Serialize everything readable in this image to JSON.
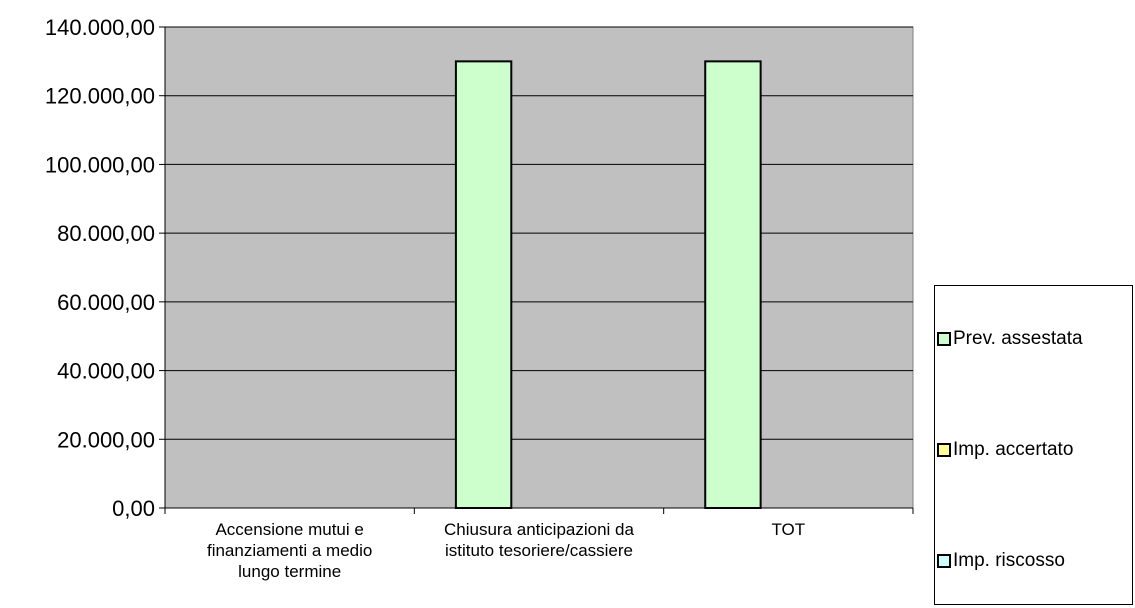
{
  "chart_data": {
    "type": "bar",
    "categories": [
      "Accensione mutui e finanziamenti a medio lungo termine",
      "Chiusura anticipazioni da istituto tesoriere/cassiere",
      "TOT"
    ],
    "category_lines": [
      [
        "Accensione mutui e",
        "finanziamenti a medio",
        "lungo termine"
      ],
      [
        "Chiusura anticipazioni da",
        "istituto tesoriere/cassiere"
      ],
      [
        "TOT"
      ]
    ],
    "series": [
      {
        "name": "Prev. assestata",
        "values": [
          0,
          130000,
          130000
        ],
        "color": "#ccffcc"
      },
      {
        "name": "Imp. accertato",
        "values": [
          0,
          0,
          0
        ],
        "color": "#ffff99"
      },
      {
        "name": "Imp. riscosso",
        "values": [
          0,
          0,
          0
        ],
        "color": "#ccffff"
      }
    ],
    "ylim": [
      0,
      140000
    ],
    "yticks": [
      0,
      20000,
      40000,
      60000,
      80000,
      100000,
      120000,
      140000
    ],
    "ytick_labels": [
      "0,00",
      "20.000,00",
      "40.000,00",
      "60.000,00",
      "80.000,00",
      "100.000,00",
      "120.000,00",
      "140.000,00"
    ],
    "grid": true,
    "plot_background": "#c0c0c0",
    "legend_position": "right"
  }
}
